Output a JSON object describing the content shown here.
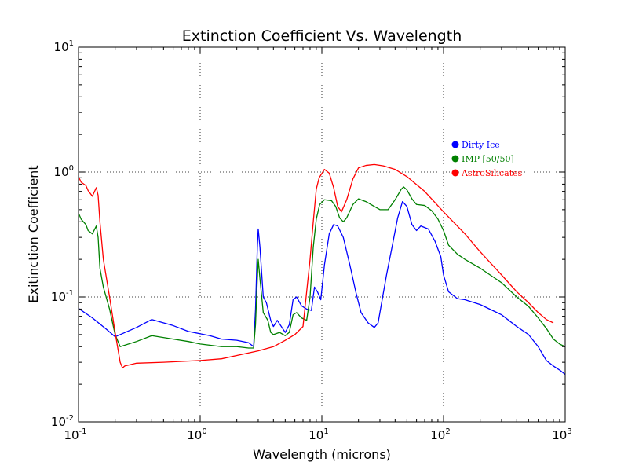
{
  "chart_data": {
    "type": "line",
    "title": "Extinction Coefficient Vs. Wavelength",
    "xlabel": "Wavelength (microns)",
    "ylabel": "Exitinction Coefficient",
    "xscale": "log",
    "yscale": "log",
    "xlim": [
      0.1,
      1000
    ],
    "ylim": [
      0.01,
      10
    ],
    "grid": true,
    "legend_position": "right",
    "x_ticks": [
      {
        "base": "10",
        "exp": "-1"
      },
      {
        "base": "10",
        "exp": "0"
      },
      {
        "base": "10",
        "exp": "1"
      },
      {
        "base": "10",
        "exp": "2"
      },
      {
        "base": "10",
        "exp": "3"
      }
    ],
    "y_ticks": [
      {
        "base": "10",
        "exp": "-2"
      },
      {
        "base": "10",
        "exp": "-1"
      },
      {
        "base": "10",
        "exp": "0"
      },
      {
        "base": "10",
        "exp": "1"
      }
    ],
    "series": [
      {
        "name": "Dirty Ice",
        "color": "#0000ff",
        "points": [
          [
            0.1,
            0.081
          ],
          [
            0.13,
            0.068
          ],
          [
            0.17,
            0.055
          ],
          [
            0.2,
            0.048
          ],
          [
            0.3,
            0.057
          ],
          [
            0.4,
            0.066
          ],
          [
            0.6,
            0.059
          ],
          [
            0.8,
            0.053
          ],
          [
            1.2,
            0.049
          ],
          [
            1.5,
            0.046
          ],
          [
            2.0,
            0.045
          ],
          [
            2.5,
            0.043
          ],
          [
            2.75,
            0.04
          ],
          [
            2.85,
            0.08
          ],
          [
            2.95,
            0.25
          ],
          [
            3.0,
            0.35
          ],
          [
            3.1,
            0.25
          ],
          [
            3.3,
            0.1
          ],
          [
            3.5,
            0.09
          ],
          [
            3.8,
            0.065
          ],
          [
            4.0,
            0.058
          ],
          [
            4.3,
            0.065
          ],
          [
            4.7,
            0.057
          ],
          [
            5.0,
            0.052
          ],
          [
            5.4,
            0.06
          ],
          [
            5.8,
            0.095
          ],
          [
            6.2,
            0.1
          ],
          [
            6.8,
            0.085
          ],
          [
            7.5,
            0.08
          ],
          [
            8.2,
            0.078
          ],
          [
            8.7,
            0.12
          ],
          [
            9.2,
            0.11
          ],
          [
            9.8,
            0.095
          ],
          [
            10.5,
            0.18
          ],
          [
            11.5,
            0.32
          ],
          [
            12.5,
            0.38
          ],
          [
            13.5,
            0.37
          ],
          [
            15,
            0.3
          ],
          [
            17,
            0.18
          ],
          [
            19,
            0.11
          ],
          [
            21,
            0.075
          ],
          [
            24,
            0.062
          ],
          [
            27,
            0.057
          ],
          [
            29,
            0.062
          ],
          [
            31,
            0.09
          ],
          [
            34,
            0.15
          ],
          [
            38,
            0.26
          ],
          [
            42,
            0.43
          ],
          [
            46,
            0.58
          ],
          [
            50,
            0.53
          ],
          [
            55,
            0.38
          ],
          [
            60,
            0.34
          ],
          [
            65,
            0.37
          ],
          [
            75,
            0.35
          ],
          [
            85,
            0.28
          ],
          [
            95,
            0.21
          ],
          [
            100,
            0.15
          ],
          [
            110,
            0.11
          ],
          [
            130,
            0.097
          ],
          [
            150,
            0.095
          ],
          [
            200,
            0.087
          ],
          [
            300,
            0.072
          ],
          [
            400,
            0.058
          ],
          [
            500,
            0.05
          ],
          [
            600,
            0.04
          ],
          [
            700,
            0.031
          ],
          [
            800,
            0.028
          ],
          [
            900,
            0.026
          ],
          [
            1000,
            0.024
          ]
        ]
      },
      {
        "name": "IMP [50/50]",
        "color": "#008000",
        "points": [
          [
            0.1,
            0.47
          ],
          [
            0.105,
            0.42
          ],
          [
            0.115,
            0.38
          ],
          [
            0.12,
            0.34
          ],
          [
            0.13,
            0.32
          ],
          [
            0.14,
            0.37
          ],
          [
            0.145,
            0.3
          ],
          [
            0.15,
            0.17
          ],
          [
            0.16,
            0.12
          ],
          [
            0.18,
            0.08
          ],
          [
            0.2,
            0.05
          ],
          [
            0.22,
            0.04
          ],
          [
            0.3,
            0.044
          ],
          [
            0.4,
            0.049
          ],
          [
            0.6,
            0.046
          ],
          [
            0.8,
            0.044
          ],
          [
            1.0,
            0.042
          ],
          [
            1.5,
            0.04
          ],
          [
            2.0,
            0.04
          ],
          [
            2.5,
            0.039
          ],
          [
            2.75,
            0.039
          ],
          [
            2.85,
            0.06
          ],
          [
            2.95,
            0.14
          ],
          [
            3.0,
            0.2
          ],
          [
            3.1,
            0.14
          ],
          [
            3.3,
            0.075
          ],
          [
            3.6,
            0.065
          ],
          [
            3.8,
            0.052
          ],
          [
            4.0,
            0.05
          ],
          [
            4.5,
            0.052
          ],
          [
            5.0,
            0.049
          ],
          [
            5.4,
            0.052
          ],
          [
            5.8,
            0.072
          ],
          [
            6.2,
            0.075
          ],
          [
            6.8,
            0.068
          ],
          [
            7.5,
            0.065
          ],
          [
            8.0,
            0.1
          ],
          [
            8.5,
            0.25
          ],
          [
            9.0,
            0.42
          ],
          [
            9.6,
            0.55
          ],
          [
            10.5,
            0.6
          ],
          [
            12,
            0.59
          ],
          [
            13,
            0.53
          ],
          [
            14,
            0.43
          ],
          [
            15,
            0.4
          ],
          [
            16,
            0.43
          ],
          [
            18,
            0.55
          ],
          [
            20,
            0.61
          ],
          [
            23,
            0.58
          ],
          [
            27,
            0.53
          ],
          [
            30,
            0.5
          ],
          [
            35,
            0.5
          ],
          [
            40,
            0.6
          ],
          [
            45,
            0.73
          ],
          [
            47,
            0.76
          ],
          [
            50,
            0.72
          ],
          [
            55,
            0.61
          ],
          [
            60,
            0.55
          ],
          [
            70,
            0.54
          ],
          [
            80,
            0.49
          ],
          [
            90,
            0.42
          ],
          [
            100,
            0.34
          ],
          [
            110,
            0.26
          ],
          [
            130,
            0.22
          ],
          [
            150,
            0.2
          ],
          [
            200,
            0.17
          ],
          [
            300,
            0.13
          ],
          [
            400,
            0.1
          ],
          [
            500,
            0.084
          ],
          [
            600,
            0.068
          ],
          [
            700,
            0.056
          ],
          [
            800,
            0.046
          ],
          [
            900,
            0.042
          ],
          [
            1000,
            0.04
          ]
        ]
      },
      {
        "name": "AstroSilicates",
        "color": "#ff0000",
        "points": [
          [
            0.1,
            0.92
          ],
          [
            0.105,
            0.83
          ],
          [
            0.115,
            0.78
          ],
          [
            0.12,
            0.71
          ],
          [
            0.13,
            0.64
          ],
          [
            0.14,
            0.75
          ],
          [
            0.145,
            0.65
          ],
          [
            0.15,
            0.4
          ],
          [
            0.16,
            0.2
          ],
          [
            0.18,
            0.1
          ],
          [
            0.2,
            0.052
          ],
          [
            0.22,
            0.03
          ],
          [
            0.23,
            0.027
          ],
          [
            0.24,
            0.028
          ],
          [
            0.3,
            0.0295
          ],
          [
            0.5,
            0.03
          ],
          [
            1.0,
            0.031
          ],
          [
            1.5,
            0.032
          ],
          [
            2.0,
            0.034
          ],
          [
            3.0,
            0.037
          ],
          [
            4.0,
            0.04
          ],
          [
            5.0,
            0.045
          ],
          [
            6.0,
            0.05
          ],
          [
            7.0,
            0.058
          ],
          [
            8.0,
            0.2
          ],
          [
            8.5,
            0.4
          ],
          [
            9.0,
            0.73
          ],
          [
            9.5,
            0.9
          ],
          [
            10.5,
            1.05
          ],
          [
            11.5,
            0.98
          ],
          [
            12.5,
            0.75
          ],
          [
            13.5,
            0.53
          ],
          [
            14.5,
            0.48
          ],
          [
            16,
            0.6
          ],
          [
            18,
            0.88
          ],
          [
            20,
            1.08
          ],
          [
            23,
            1.13
          ],
          [
            27,
            1.15
          ],
          [
            32,
            1.12
          ],
          [
            40,
            1.05
          ],
          [
            50,
            0.92
          ],
          [
            70,
            0.7
          ],
          [
            100,
            0.48
          ],
          [
            150,
            0.32
          ],
          [
            200,
            0.23
          ],
          [
            300,
            0.15
          ],
          [
            400,
            0.11
          ],
          [
            500,
            0.09
          ],
          [
            600,
            0.075
          ],
          [
            700,
            0.066
          ],
          [
            800,
            0.062
          ]
        ]
      }
    ]
  }
}
